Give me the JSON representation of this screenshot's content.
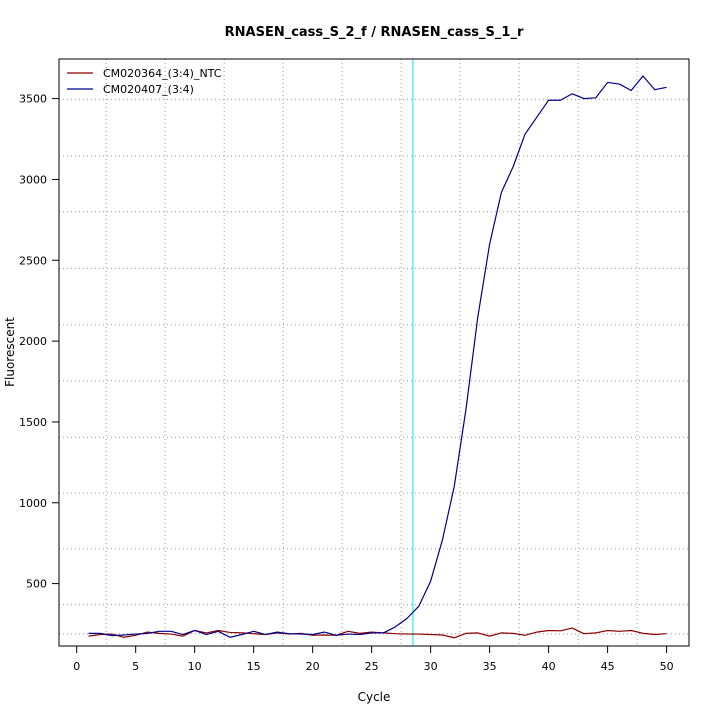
{
  "chart_data": {
    "type": "line",
    "title": "RNASEN_cass_S_2_f / RNASEN_cass_S_1_r",
    "xlabel": "Cycle",
    "ylabel": "Fluorescent",
    "xlim": [
      -1.5,
      51.9
    ],
    "ylim": [
      114,
      3745
    ],
    "x_ticks": [
      0,
      5,
      10,
      15,
      20,
      25,
      30,
      35,
      40,
      45,
      50
    ],
    "y_ticks": [
      500,
      1000,
      1500,
      2000,
      2500,
      3000,
      3500
    ],
    "grid": "dotted",
    "grid_x": [
      2.5,
      7.5,
      12.5,
      17.5,
      22.5,
      27.5,
      32.5,
      37.5,
      42.5,
      47.5
    ],
    "grid_y": [
      190,
      370,
      715,
      1060,
      1405,
      1755,
      2100,
      2450,
      2800,
      3145,
      3495
    ],
    "threshold_cycle": 28.5,
    "threshold_color": "#00e5ee",
    "legend_position": "top-left",
    "x": [
      1,
      2,
      3,
      4,
      5,
      6,
      7,
      8,
      9,
      10,
      11,
      12,
      13,
      14,
      15,
      16,
      17,
      18,
      19,
      20,
      21,
      22,
      23,
      24,
      25,
      26,
      27,
      28,
      29,
      30,
      31,
      32,
      33,
      34,
      35,
      36,
      37,
      38,
      39,
      40,
      41,
      42,
      43,
      44,
      45,
      46,
      47,
      48,
      49,
      50
    ],
    "series": [
      {
        "name": "CM020364_(3:4)_NTC",
        "color": "#8b0000",
        "values": [
          175,
          185,
          188,
          168,
          180,
          200,
          192,
          188,
          175,
          210,
          195,
          210,
          198,
          195,
          190,
          185,
          195,
          188,
          192,
          180,
          182,
          180,
          205,
          192,
          200,
          195,
          190,
          188,
          188,
          185,
          182,
          165,
          192,
          195,
          175,
          195,
          192,
          180,
          200,
          210,
          208,
          225,
          190,
          195,
          210,
          205,
          210,
          192,
          185,
          190
        ]
      },
      {
        "name": "CM020407_(3:4)",
        "color": "#00008b",
        "values": [
          192,
          192,
          178,
          182,
          188,
          192,
          205,
          205,
          185,
          210,
          185,
          205,
          168,
          185,
          205,
          185,
          200,
          190,
          188,
          185,
          200,
          180,
          188,
          185,
          195,
          195,
          232,
          285,
          360,
          515,
          770,
          1100,
          1580,
          2150,
          2600,
          2920,
          3080,
          3280,
          3385,
          3490,
          3490,
          3530,
          3500,
          3505,
          3600,
          3590,
          3550,
          3640,
          3555,
          3570
        ]
      }
    ]
  }
}
